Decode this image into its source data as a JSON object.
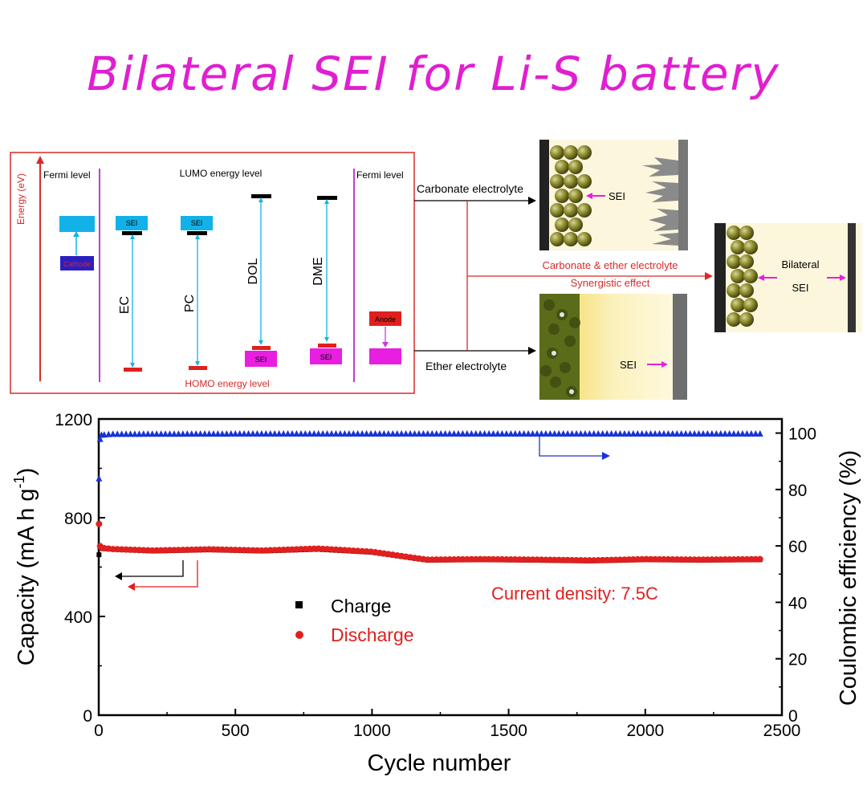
{
  "title": "Bilateral SEI for Li-S battery",
  "colors": {
    "title": "#e01fd0",
    "charge": "#000000",
    "discharge": "#e0201f",
    "efficiency": "#1733d6",
    "sei_cyan": "#12b2e8",
    "sei_magenta": "#e81ee0",
    "frame_red": "#d92a2a"
  },
  "diagram": {
    "energy_axis": "Energy (eV)",
    "fermi_left": "Fermi level",
    "fermi_right": "Fermi level",
    "lumo": "LUMO energy level",
    "homo": "HOMO energy level",
    "cathode": "Cathode",
    "anode": "Anode",
    "sei": "SEI",
    "solvents": [
      "EC",
      "PC",
      "DOL",
      "DME"
    ],
    "carbonate_electrolyte": "Carbonate electrolyte",
    "ether_electrolyte": "Ether electrolyte",
    "combined_line1": "Carbonate & ether electrolyte",
    "combined_line2": "Synergistic  effect",
    "bilateral": "Bilateral",
    "sei_label": "SEI"
  },
  "chart_data": {
    "type": "scatter",
    "xlabel": "Cycle number",
    "ylabel": "Capacity (mA h g",
    "ylabel_sup": "-1",
    "ylabel_end": ")",
    "y2label": "Coulombic efficiency (%)",
    "xlim": [
      0,
      2500
    ],
    "ylim": [
      0,
      1200
    ],
    "y2lim": [
      0,
      105
    ],
    "xticks": [
      0,
      500,
      1000,
      1500,
      2000,
      2500
    ],
    "yticks": [
      0,
      400,
      800,
      1200
    ],
    "y2ticks": [
      0,
      20,
      40,
      60,
      80,
      100
    ],
    "annotation": "Current density: 7.5C",
    "legend": {
      "charge": "Charge",
      "discharge": "Discharge"
    },
    "series": [
      {
        "name": "Charge",
        "axis": "left",
        "x": [
          1,
          5,
          10,
          50,
          200,
          400,
          600,
          800,
          1000,
          1200,
          1400,
          1600,
          1800,
          2000,
          2200,
          2430
        ],
        "y": [
          650,
          680,
          675,
          672,
          665,
          670,
          665,
          672,
          660,
          628,
          630,
          628,
          625,
          630,
          628,
          630
        ]
      },
      {
        "name": "Discharge",
        "axis": "left",
        "x": [
          1,
          5,
          10,
          50,
          200,
          400,
          600,
          800,
          1000,
          1200,
          1400,
          1600,
          1800,
          2000,
          2200,
          2430
        ],
        "y": [
          775,
          685,
          678,
          673,
          667,
          672,
          667,
          675,
          662,
          630,
          632,
          630,
          627,
          632,
          630,
          632
        ]
      },
      {
        "name": "Coulombic efficiency",
        "axis": "right",
        "x": [
          1,
          5,
          10,
          50,
          500,
          1000,
          1500,
          2000,
          2430
        ],
        "y": [
          84,
          98,
          99.5,
          99.8,
          99.9,
          99.9,
          99.9,
          99.9,
          99.9
        ]
      }
    ]
  }
}
